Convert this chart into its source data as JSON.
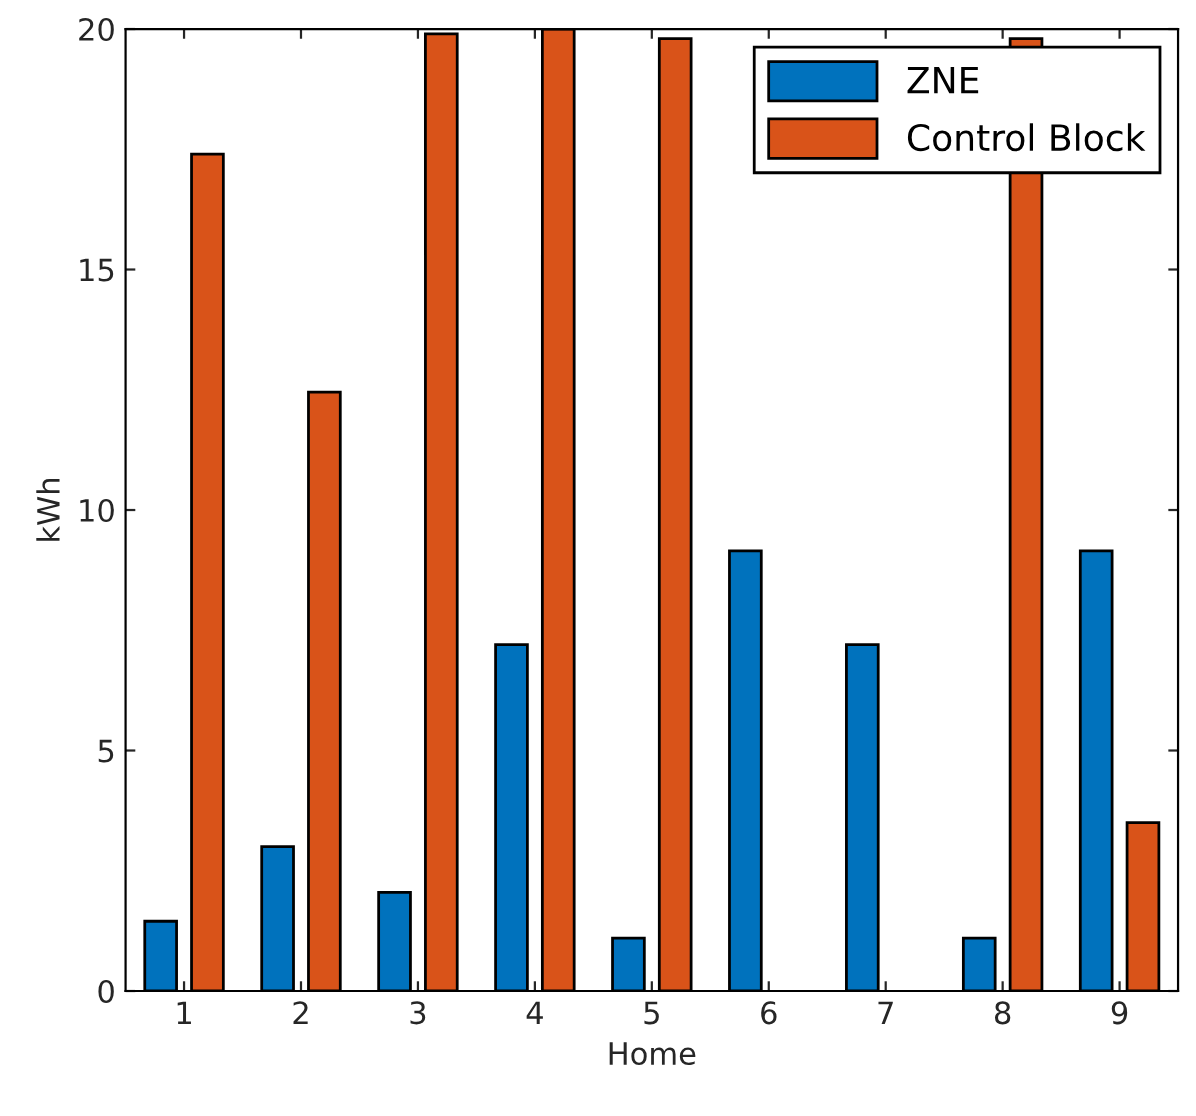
{
  "chart_data": {
    "type": "bar",
    "xlabel": "Home",
    "ylabel": "kWh",
    "categories": [
      "1",
      "2",
      "3",
      "4",
      "5",
      "6",
      "7",
      "8",
      "9"
    ],
    "series": [
      {
        "name": "ZNE",
        "color": "#0072bd",
        "values": [
          1.45,
          3.0,
          2.05,
          7.2,
          1.1,
          9.15,
          7.2,
          1.1,
          9.15
        ]
      },
      {
        "name": "Control Block",
        "color": "#d95319",
        "values": [
          17.4,
          12.45,
          19.9,
          20,
          19.8,
          null,
          null,
          19.8,
          3.5
        ]
      }
    ],
    "ylim": [
      0,
      20
    ],
    "yticks": [
      0,
      5,
      10,
      15,
      20
    ],
    "grid": false,
    "legend": "top right"
  }
}
